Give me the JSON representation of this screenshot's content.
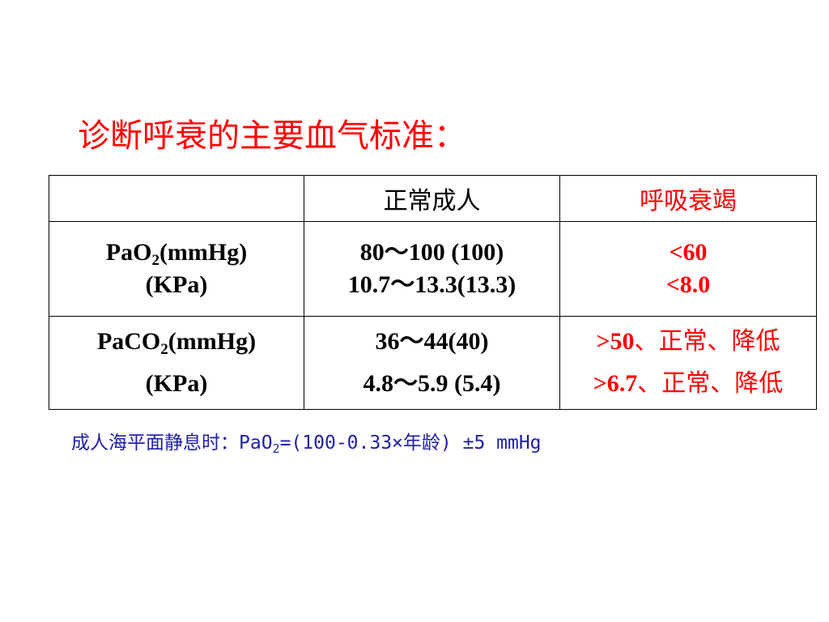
{
  "title": "诊断呼衰的主要血气标准：",
  "table": {
    "header": {
      "blank": "",
      "normal": "正常成人",
      "failure": "呼吸衰竭"
    },
    "rows": [
      {
        "param_line1_pre": "PaO",
        "param_line1_sub": "2",
        "param_line1_post": "(mmHg)",
        "param_line2": "(KPa)",
        "normal_line1": "80～100 (100)",
        "normal_line2": "10.7～13.3(13.3)",
        "failure_line1_val": "<60",
        "failure_line1_rest": "",
        "failure_line2_val": "<8.0",
        "failure_line2_rest": ""
      },
      {
        "param_line1_pre": "PaCO",
        "param_line1_sub": "2",
        "param_line1_post": "(mmHg)",
        "param_line2": "(KPa)",
        "normal_line1": "36～44(40)",
        "normal_line2": "4.8～5.9 (5.4)",
        "failure_line1_val": ">50",
        "failure_line1_rest": "、正常、降低",
        "failure_line2_val": ">6.7",
        "failure_line2_rest": "、正常、降低"
      }
    ]
  },
  "note": {
    "pre": "成人海平面静息时：PaO",
    "sub": "2",
    "post": "=(100-0.33×年龄) ±5 mmHg"
  },
  "colors": {
    "title": "#ff0000",
    "failure_text": "#ff0000",
    "note_text": "#1f1fa8",
    "table_text": "#000000"
  }
}
